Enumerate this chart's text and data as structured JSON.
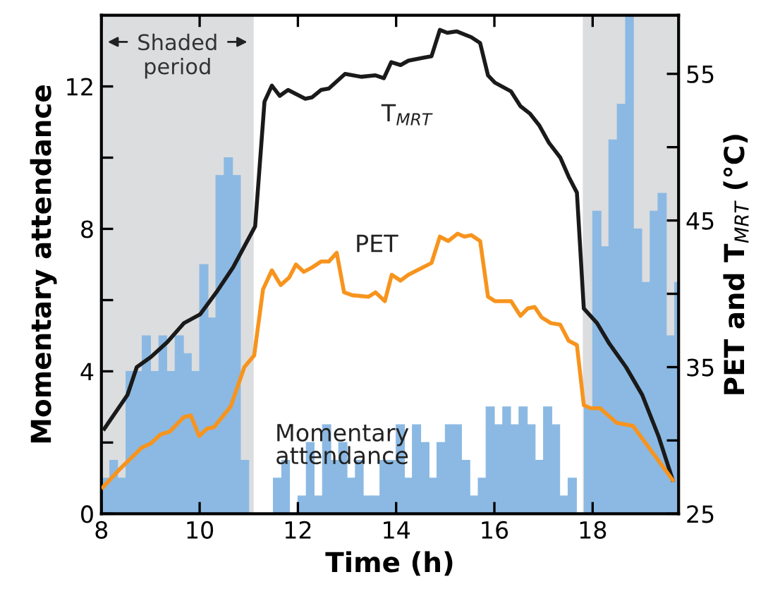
{
  "chart_data": {
    "type": "histogram",
    "xlabel": "Time (h)",
    "ylabel": "Momentary attendance",
    "y2label": "PET and T$_{MRT}$ (°C)",
    "xlim": [
      8,
      19.75
    ],
    "xticks": [
      8,
      10,
      12,
      14,
      16,
      18
    ],
    "ylim": [
      0,
      14
    ],
    "yticks": [
      0,
      {
        "value": 2,
        "label": null
      },
      4,
      {
        "value": 6,
        "label": null
      },
      8,
      {
        "value": 10,
        "label": null
      },
      12
    ],
    "y2lim": [
      25,
      59
    ],
    "y2ticks": [
      25,
      {
        "value": 30,
        "label": null
      },
      35,
      {
        "value": 40,
        "label": null
      },
      45,
      {
        "value": 50,
        "label": null
      },
      55
    ],
    "grid": false,
    "legend": false,
    "bands": [
      {
        "axis": "x",
        "from": 8,
        "to": 11.1,
        "label": "Shaded period",
        "color": "#dcdddf"
      },
      {
        "axis": "x",
        "from": 17.8,
        "to": 19.75,
        "color": "#dcdddf"
      }
    ],
    "series": [
      {
        "name": "Momentary attendance",
        "type": "histogram",
        "color": "#8bb9e3",
        "bins": [
          8,
          8.17,
          8.33,
          8.5,
          8.67,
          8.83,
          9,
          9.17,
          9.33,
          9.5,
          9.67,
          9.83,
          10,
          10.17,
          10.33,
          10.5,
          10.67,
          10.83,
          11,
          11.17,
          11.33,
          11.5,
          11.67,
          11.83,
          12,
          12.17,
          12.33,
          12.5,
          12.67,
          12.83,
          13,
          13.17,
          13.33,
          13.5,
          13.67,
          13.83,
          14,
          14.17,
          14.33,
          14.5,
          14.67,
          14.83,
          15,
          15.17,
          15.33,
          15.5,
          15.67,
          15.83,
          16,
          16.17,
          16.33,
          16.5,
          16.67,
          16.83,
          17,
          17.17,
          17.33,
          17.5,
          17.67,
          17.83,
          18,
          18.17,
          18.33,
          18.5,
          18.67,
          18.83,
          19,
          19.17,
          19.33,
          19.5,
          19.67,
          19.75
        ],
        "values": [
          1,
          1.5,
          1,
          4,
          4,
          5,
          4,
          5,
          4,
          5,
          4.5,
          4,
          7,
          5.5,
          9.5,
          10,
          9.5,
          1.5,
          0,
          0,
          0,
          1,
          1.5,
          0,
          0.5,
          2,
          0.5,
          2.5,
          1.5,
          2,
          1,
          1.5,
          0.5,
          0.5,
          1.5,
          1.5,
          2.5,
          1,
          2.5,
          2,
          1,
          2,
          2.5,
          2.5,
          1.5,
          0.5,
          1,
          3,
          2.5,
          3,
          2.5,
          3,
          2.5,
          1.5,
          3,
          2.5,
          0.5,
          1,
          0,
          3,
          8.5,
          7.5,
          10.5,
          11.5,
          14,
          8,
          6.5,
          8.5,
          9,
          5,
          6.5
        ]
      },
      {
        "name": "T$_{MRT}$",
        "type": "line",
        "axis": "y2",
        "color": "#1a1a1a",
        "x": [
          8.06,
          8.53,
          8.72,
          9.01,
          9.34,
          9.68,
          10.01,
          10.34,
          10.68,
          11.13,
          11.32,
          11.47,
          11.63,
          11.8,
          12.15,
          12.29,
          12.47,
          12.63,
          12.96,
          13.29,
          13.58,
          13.75,
          13.9,
          14.09,
          14.25,
          14.56,
          14.72,
          14.89,
          15.04,
          15.23,
          15.53,
          15.71,
          15.87,
          16.01,
          16.34,
          16.53,
          16.72,
          16.91,
          17.11,
          17.34,
          17.51,
          17.68,
          17.82,
          18.09,
          18.34,
          18.68,
          19.01,
          19.34,
          19.63
        ],
        "values": [
          30.8,
          33.1,
          35.0,
          35.7,
          36.7,
          38.0,
          38.6,
          40.1,
          41.8,
          44.6,
          53.1,
          54.2,
          53.5,
          53.9,
          53.3,
          53.4,
          53.9,
          54.0,
          55.0,
          54.8,
          54.9,
          54.7,
          55.8,
          55.6,
          55.9,
          56.1,
          56.2,
          58.0,
          57.8,
          57.9,
          57.5,
          57.1,
          54.9,
          54.4,
          53.8,
          52.8,
          52.3,
          51.5,
          50.3,
          49.3,
          48.0,
          46.9,
          39.0,
          38.0,
          36.6,
          35.0,
          33.1,
          30.3,
          27.3
        ]
      },
      {
        "name": "PET",
        "type": "line",
        "axis": "y2",
        "color": "#f7941d",
        "x": [
          8.03,
          8.39,
          8.82,
          9.01,
          9.2,
          9.39,
          9.68,
          9.82,
          9.99,
          10.15,
          10.29,
          10.63,
          10.91,
          11.11,
          11.29,
          11.47,
          11.65,
          11.82,
          11.96,
          12.12,
          12.29,
          12.47,
          12.63,
          12.79,
          12.94,
          13.11,
          13.44,
          13.58,
          13.77,
          13.91,
          14.09,
          14.25,
          14.72,
          14.89,
          15.06,
          15.25,
          15.39,
          15.53,
          15.71,
          15.87,
          16.01,
          16.34,
          16.53,
          16.68,
          16.82,
          16.96,
          17.15,
          17.34,
          17.51,
          17.68,
          17.82,
          17.96,
          18.15,
          18.49,
          18.82,
          19.63
        ],
        "values": [
          26.8,
          28.1,
          29.5,
          29.8,
          30.4,
          30.6,
          31.6,
          31.7,
          30.3,
          30.8,
          30.9,
          32.3,
          35.0,
          35.8,
          40.3,
          41.6,
          40.6,
          41.1,
          42.0,
          41.5,
          41.8,
          42.2,
          42.2,
          42.8,
          40.1,
          39.9,
          39.8,
          40.1,
          39.5,
          41.3,
          40.9,
          41.3,
          42.1,
          43.9,
          43.6,
          44.1,
          43.9,
          44.0,
          43.6,
          39.8,
          39.5,
          39.5,
          38.5,
          39.0,
          39.1,
          38.4,
          38.0,
          37.9,
          36.8,
          36.5,
          32.4,
          32.2,
          32.2,
          31.2,
          31.0,
          27.3
        ]
      }
    ]
  }
}
